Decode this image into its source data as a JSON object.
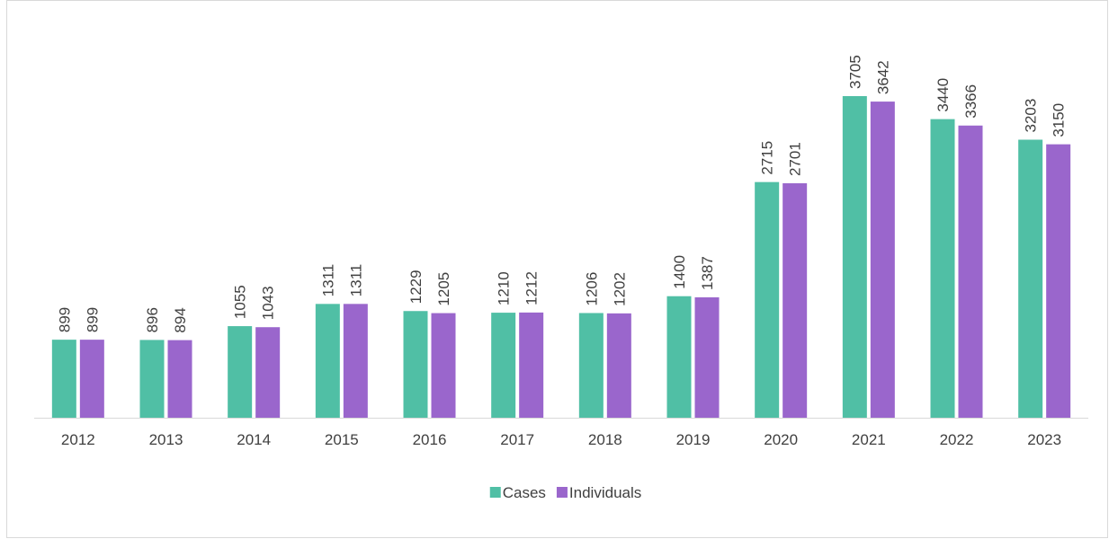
{
  "chart_data": {
    "type": "bar",
    "categories": [
      "2012",
      "2013",
      "2014",
      "2015",
      "2016",
      "2017",
      "2018",
      "2019",
      "2020",
      "2021",
      "2022",
      "2023"
    ],
    "series": [
      {
        "name": "Cases",
        "color": "#50bfa5",
        "values": [
          899,
          896,
          1055,
          1311,
          1229,
          1210,
          1206,
          1400,
          2715,
          3705,
          3440,
          3203
        ]
      },
      {
        "name": "Individuals",
        "color": "#9a66cc",
        "values": [
          899,
          894,
          1043,
          1311,
          1205,
          1212,
          1202,
          1387,
          2701,
          3642,
          3366,
          3150
        ]
      }
    ]
  }
}
